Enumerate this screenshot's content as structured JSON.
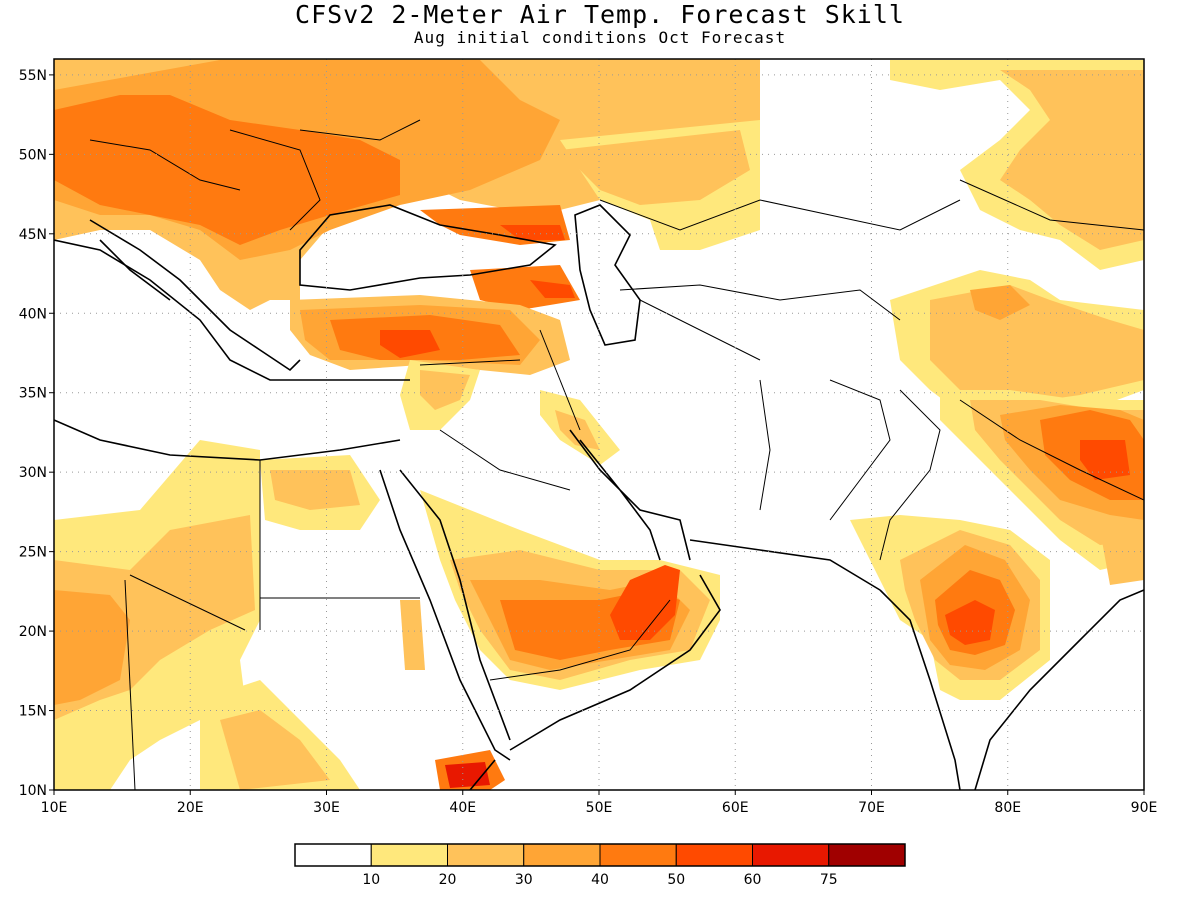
{
  "title": "CFSv2 2-Meter Air Temp. Forecast Skill",
  "subtitle": "Aug initial conditions  Oct Forecast",
  "map": {
    "lon_range": [
      10,
      90
    ],
    "lat_range": [
      10,
      56
    ],
    "x_ticks": [
      "10E",
      "20E",
      "30E",
      "40E",
      "50E",
      "60E",
      "70E",
      "80E",
      "90E"
    ],
    "y_ticks": [
      "10N",
      "15N",
      "20N",
      "25N",
      "30N",
      "35N",
      "40N",
      "45N",
      "50N",
      "55N"
    ]
  },
  "legend": {
    "labels": [
      "10",
      "20",
      "30",
      "40",
      "50",
      "60",
      "75"
    ],
    "colors": [
      "#ffffff",
      "#ffe87c",
      "#ffc25a",
      "#ffa535",
      "#ff7a10",
      "#ff4a00",
      "#e81800",
      "#a00000"
    ]
  },
  "colors": {
    "c10": "#ffe87c",
    "c20": "#ffc25a",
    "c30": "#ffa535",
    "c40": "#ff7a10",
    "c50": "#ff4a00",
    "c60": "#e81800",
    "c75": "#a00000"
  }
}
